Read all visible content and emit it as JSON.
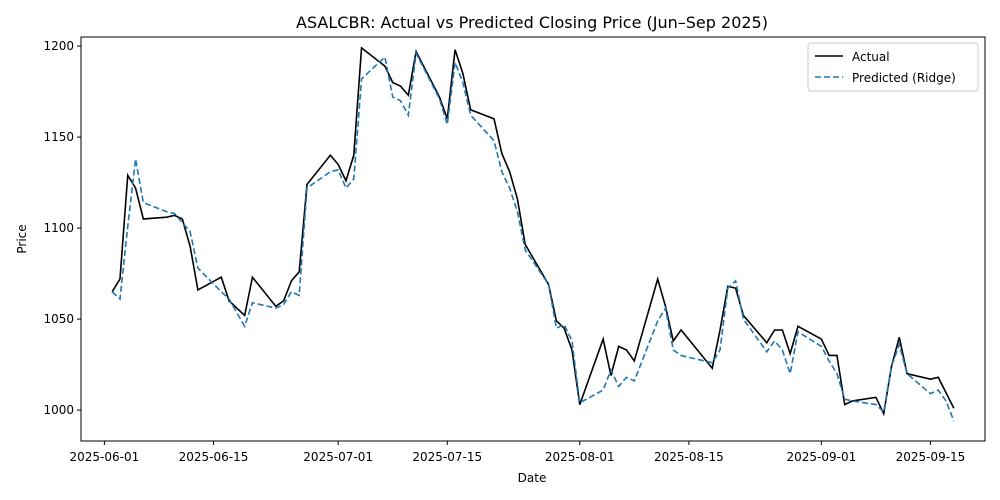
{
  "chart_data": {
    "type": "line",
    "title": "ASALCBR: Actual vs Predicted Closing Price (Jun–Sep 2025)",
    "xlabel": "Date",
    "ylabel": "Price",
    "xlim": [
      "2025-05-29",
      "2025-09-22"
    ],
    "ylim": [
      983,
      1205
    ],
    "x_ticks": [
      "2025-06-01",
      "2025-06-15",
      "2025-07-01",
      "2025-07-15",
      "2025-08-01",
      "2025-08-15",
      "2025-09-01",
      "2025-09-15"
    ],
    "y_ticks": [
      1000,
      1050,
      1100,
      1150,
      1200
    ],
    "grid": false,
    "legend": "top-right",
    "series": [
      {
        "name": "Actual",
        "color": "#000000",
        "style": "solid",
        "points": [
          [
            "2025-06-02",
            1065
          ],
          [
            "2025-06-03",
            1072
          ],
          [
            "2025-06-04",
            1129
          ],
          [
            "2025-06-05",
            1122
          ],
          [
            "2025-06-06",
            1105
          ],
          [
            "2025-06-09",
            1106
          ],
          [
            "2025-06-10",
            1107
          ],
          [
            "2025-06-11",
            1105
          ],
          [
            "2025-06-12",
            1090
          ],
          [
            "2025-06-13",
            1066
          ],
          [
            "2025-06-16",
            1073
          ],
          [
            "2025-06-17",
            1060
          ],
          [
            "2025-06-19",
            1052
          ],
          [
            "2025-06-20",
            1073
          ],
          [
            "2025-06-23",
            1057
          ],
          [
            "2025-06-24",
            1060
          ],
          [
            "2025-06-25",
            1071
          ],
          [
            "2025-06-26",
            1076
          ],
          [
            "2025-06-27",
            1124
          ],
          [
            "2025-06-30",
            1140
          ],
          [
            "2025-07-01",
            1135
          ],
          [
            "2025-07-02",
            1126
          ],
          [
            "2025-07-03",
            1140
          ],
          [
            "2025-07-04",
            1199
          ],
          [
            "2025-07-07",
            1189
          ],
          [
            "2025-07-08",
            1180
          ],
          [
            "2025-07-09",
            1178
          ],
          [
            "2025-07-10",
            1173
          ],
          [
            "2025-07-11",
            1197
          ],
          [
            "2025-07-14",
            1172
          ],
          [
            "2025-07-15",
            1160
          ],
          [
            "2025-07-16",
            1198
          ],
          [
            "2025-07-17",
            1185
          ],
          [
            "2025-07-18",
            1165
          ],
          [
            "2025-07-21",
            1160
          ],
          [
            "2025-07-22",
            1141
          ],
          [
            "2025-07-23",
            1131
          ],
          [
            "2025-07-24",
            1116
          ],
          [
            "2025-07-25",
            1091
          ],
          [
            "2025-07-28",
            1069
          ],
          [
            "2025-07-29",
            1049
          ],
          [
            "2025-07-30",
            1045
          ],
          [
            "2025-07-31",
            1033
          ],
          [
            "2025-08-01",
            1003
          ],
          [
            "2025-08-04",
            1039
          ],
          [
            "2025-08-05",
            1019
          ],
          [
            "2025-08-06",
            1035
          ],
          [
            "2025-08-07",
            1033
          ],
          [
            "2025-08-08",
            1027
          ],
          [
            "2025-08-11",
            1072
          ],
          [
            "2025-08-12",
            1057
          ],
          [
            "2025-08-13",
            1038
          ],
          [
            "2025-08-14",
            1044
          ],
          [
            "2025-08-18",
            1023
          ],
          [
            "2025-08-19",
            1044
          ],
          [
            "2025-08-20",
            1068
          ],
          [
            "2025-08-21",
            1067
          ],
          [
            "2025-08-22",
            1052
          ],
          [
            "2025-08-25",
            1037
          ],
          [
            "2025-08-26",
            1044
          ],
          [
            "2025-08-27",
            1044
          ],
          [
            "2025-08-28",
            1031
          ],
          [
            "2025-08-29",
            1046
          ],
          [
            "2025-09-01",
            1039
          ],
          [
            "2025-09-02",
            1030
          ],
          [
            "2025-09-03",
            1030
          ],
          [
            "2025-09-04",
            1003
          ],
          [
            "2025-09-05",
            1005
          ],
          [
            "2025-09-08",
            1007
          ],
          [
            "2025-09-09",
            998
          ],
          [
            "2025-09-10",
            1024
          ],
          [
            "2025-09-11",
            1040
          ],
          [
            "2025-09-12",
            1020
          ],
          [
            "2025-09-15",
            1017
          ],
          [
            "2025-09-16",
            1018
          ],
          [
            "2025-09-18",
            1001
          ]
        ]
      },
      {
        "name": "Predicted (Ridge)",
        "color": "#1f77b4",
        "style": "dashed",
        "points": [
          [
            "2025-06-02",
            1065
          ],
          [
            "2025-06-03",
            1061
          ],
          [
            "2025-06-04",
            1101
          ],
          [
            "2025-06-05",
            1138
          ],
          [
            "2025-06-06",
            1114
          ],
          [
            "2025-06-09",
            1109
          ],
          [
            "2025-06-10",
            1108
          ],
          [
            "2025-06-11",
            1103
          ],
          [
            "2025-06-12",
            1098
          ],
          [
            "2025-06-13",
            1078
          ],
          [
            "2025-06-16",
            1065
          ],
          [
            "2025-06-17",
            1061
          ],
          [
            "2025-06-19",
            1046
          ],
          [
            "2025-06-20",
            1059
          ],
          [
            "2025-06-23",
            1056
          ],
          [
            "2025-06-24",
            1058
          ],
          [
            "2025-06-25",
            1065
          ],
          [
            "2025-06-26",
            1063
          ],
          [
            "2025-06-27",
            1122
          ],
          [
            "2025-06-30",
            1131
          ],
          [
            "2025-07-01",
            1132
          ],
          [
            "2025-07-02",
            1122
          ],
          [
            "2025-07-03",
            1127
          ],
          [
            "2025-07-04",
            1182
          ],
          [
            "2025-07-07",
            1194
          ],
          [
            "2025-07-08",
            1172
          ],
          [
            "2025-07-09",
            1170
          ],
          [
            "2025-07-10",
            1162
          ],
          [
            "2025-07-11",
            1196
          ],
          [
            "2025-07-14",
            1171
          ],
          [
            "2025-07-15",
            1157
          ],
          [
            "2025-07-16",
            1191
          ],
          [
            "2025-07-17",
            1180
          ],
          [
            "2025-07-18",
            1162
          ],
          [
            "2025-07-21",
            1148
          ],
          [
            "2025-07-22",
            1131
          ],
          [
            "2025-07-23",
            1122
          ],
          [
            "2025-07-24",
            1109
          ],
          [
            "2025-07-25",
            1088
          ],
          [
            "2025-07-28",
            1069
          ],
          [
            "2025-07-29",
            1045
          ],
          [
            "2025-07-30",
            1047
          ],
          [
            "2025-07-31",
            1038
          ],
          [
            "2025-08-01",
            1004
          ],
          [
            "2025-08-04",
            1011
          ],
          [
            "2025-08-05",
            1022
          ],
          [
            "2025-08-06",
            1013
          ],
          [
            "2025-08-07",
            1018
          ],
          [
            "2025-08-08",
            1016
          ],
          [
            "2025-08-11",
            1049
          ],
          [
            "2025-08-12",
            1056
          ],
          [
            "2025-08-13",
            1033
          ],
          [
            "2025-08-14",
            1030
          ],
          [
            "2025-08-18",
            1026
          ],
          [
            "2025-08-19",
            1033
          ],
          [
            "2025-08-20",
            1067
          ],
          [
            "2025-08-21",
            1071
          ],
          [
            "2025-08-22",
            1050
          ],
          [
            "2025-08-25",
            1032
          ],
          [
            "2025-08-26",
            1038
          ],
          [
            "2025-08-27",
            1033
          ],
          [
            "2025-08-28",
            1020
          ],
          [
            "2025-08-29",
            1043
          ],
          [
            "2025-09-01",
            1035
          ],
          [
            "2025-09-02",
            1027
          ],
          [
            "2025-09-03",
            1020
          ],
          [
            "2025-09-04",
            1006
          ],
          [
            "2025-09-05",
            1005
          ],
          [
            "2025-09-08",
            1003
          ],
          [
            "2025-09-09",
            999
          ],
          [
            "2025-09-10",
            1024
          ],
          [
            "2025-09-11",
            1036
          ],
          [
            "2025-09-12",
            1020
          ],
          [
            "2025-09-15",
            1009
          ],
          [
            "2025-09-16",
            1011
          ],
          [
            "2025-09-17",
            1005
          ],
          [
            "2025-09-18",
            994
          ]
        ]
      }
    ]
  }
}
